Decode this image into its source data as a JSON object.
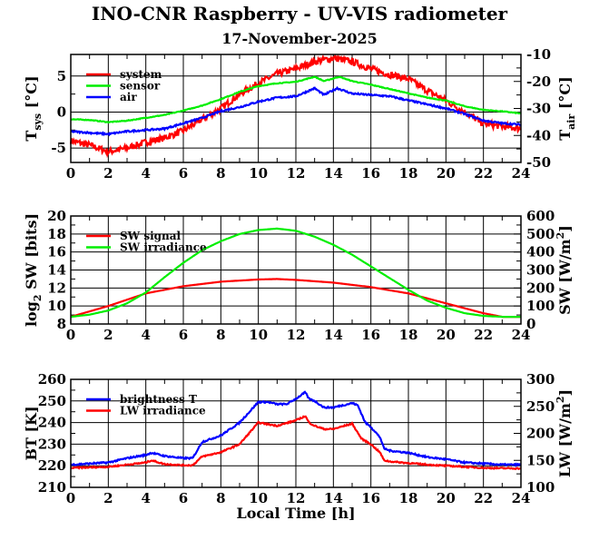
{
  "title": "INO-CNR Raspberry - UV-VIS radiometer",
  "date": "17-November-2025",
  "xlabel": "Local Time [h]",
  "chart_data": [
    {
      "type": "line",
      "name": "temperatures",
      "xlim": [
        0,
        24
      ],
      "xticks": [
        0,
        2,
        4,
        6,
        8,
        10,
        12,
        14,
        16,
        18,
        20,
        22,
        24
      ],
      "ylim": [
        -7,
        8
      ],
      "yticks": [
        -5,
        0,
        5
      ],
      "y2lim": [
        -50,
        -10
      ],
      "y2ticks": [
        -50,
        -40,
        -30,
        -20,
        -10
      ],
      "ylabel": {
        "main": "T",
        "sub": "sys",
        "rest": " [°C]"
      },
      "y2label": {
        "main": "T",
        "sub": "air",
        "rest": " [°C]"
      },
      "grid": true,
      "legend_position": "top-left",
      "series": [
        {
          "name": "system",
          "axis": "left",
          "color": "#ff0000",
          "noise": 0.45,
          "x": [
            0,
            1,
            2,
            3,
            4,
            5,
            6,
            7,
            8,
            9,
            10,
            11,
            12,
            13,
            14,
            15,
            16,
            17,
            18,
            19,
            20,
            21,
            22,
            23,
            24
          ],
          "y": [
            -4,
            -4.6,
            -5.5,
            -5,
            -4.2,
            -3.6,
            -2.6,
            -1,
            0.5,
            2.5,
            4,
            5.3,
            6,
            7,
            7.5,
            7,
            6,
            5.2,
            4.6,
            3,
            1.6,
            0,
            -1.6,
            -2,
            -2.3
          ]
        },
        {
          "name": "sensor",
          "axis": "left",
          "color": "#00ee00",
          "noise": 0.05,
          "x": [
            0,
            1,
            2,
            3,
            4,
            5,
            6,
            7,
            8,
            9,
            10,
            11,
            12,
            13,
            13.5,
            14.3,
            15,
            16,
            17,
            18,
            19,
            20,
            21,
            22,
            23,
            24
          ],
          "y": [
            -1,
            -1.1,
            -1.4,
            -1.2,
            -0.8,
            -0.4,
            0.2,
            0.9,
            1.8,
            2.8,
            3.6,
            4,
            4.2,
            4.9,
            4.3,
            4.9,
            4.3,
            3.8,
            3.2,
            2.6,
            2,
            1.6,
            0.8,
            0.3,
            0.1,
            -0.2
          ]
        },
        {
          "name": "air",
          "axis": "right",
          "color": "#0000ff",
          "noise": 0.3,
          "x": [
            0,
            1,
            2,
            3,
            4,
            5,
            6,
            7,
            8,
            9,
            10,
            11,
            12,
            13,
            13.5,
            14.2,
            15,
            16,
            17,
            18,
            19,
            20,
            21,
            22,
            23,
            24
          ],
          "y": [
            -38.5,
            -39,
            -39.5,
            -38.5,
            -38,
            -37.5,
            -35.5,
            -33.5,
            -31,
            -29.5,
            -27.5,
            -26,
            -25.5,
            -22.5,
            -25,
            -22.5,
            -24.5,
            -25,
            -25.5,
            -27,
            -28.5,
            -30,
            -32,
            -34.5,
            -35.5,
            -36
          ]
        }
      ]
    },
    {
      "type": "line",
      "name": "shortwave",
      "xlim": [
        0,
        24
      ],
      "xticks": [
        0,
        2,
        4,
        6,
        8,
        10,
        12,
        14,
        16,
        18,
        20,
        22,
        24
      ],
      "ylim": [
        8,
        20
      ],
      "yticks": [
        8,
        10,
        12,
        14,
        16,
        18,
        20
      ],
      "y2lim": [
        0,
        600
      ],
      "y2ticks": [
        0,
        100,
        200,
        300,
        400,
        500,
        600
      ],
      "ylabel": {
        "main": "log",
        "sub": "2",
        "rest": " SW [bits]"
      },
      "y2label": {
        "main": "SW [W/m",
        "sup": "2",
        "rest": "]"
      },
      "grid": true,
      "legend_position": "top-left",
      "series": [
        {
          "name": "SW signal",
          "axis": "left",
          "color": "#ff0000",
          "noise": 0,
          "x": [
            0,
            2,
            4,
            6,
            8,
            10,
            11,
            12,
            14,
            16,
            18,
            20,
            22,
            23,
            24
          ],
          "y": [
            8.8,
            10,
            11.4,
            12.2,
            12.7,
            12.95,
            13,
            12.9,
            12.6,
            12.1,
            11.4,
            10.3,
            9.2,
            8.8,
            8.8
          ]
        },
        {
          "name": "SW irradiance",
          "axis": "right",
          "color": "#00ee00",
          "noise": 0,
          "x": [
            0,
            1,
            2,
            3,
            4,
            5,
            6,
            7,
            8,
            9,
            10,
            11,
            12,
            13,
            14,
            15,
            16,
            17,
            18,
            19,
            20,
            21,
            22,
            23,
            24
          ],
          "y": [
            40,
            52,
            75,
            115,
            175,
            260,
            340,
            410,
            460,
            500,
            522,
            530,
            518,
            485,
            440,
            385,
            320,
            255,
            190,
            130,
            90,
            60,
            45,
            40,
            40
          ]
        }
      ]
    },
    {
      "type": "line",
      "name": "longwave",
      "xlim": [
        0,
        24
      ],
      "xticks": [
        0,
        2,
        4,
        6,
        8,
        10,
        12,
        14,
        16,
        18,
        20,
        22,
        24
      ],
      "ylim": [
        210,
        260
      ],
      "yticks": [
        210,
        220,
        230,
        240,
        250,
        260
      ],
      "y2lim": [
        100,
        300
      ],
      "y2ticks": [
        100,
        150,
        200,
        250,
        300
      ],
      "ylabel": {
        "main": "BT [K]"
      },
      "y2label": {
        "main": "LW [W/m",
        "sup": "2",
        "rest": "]"
      },
      "grid": true,
      "legend_position": "top-left",
      "series": [
        {
          "name": "brightness T",
          "axis": "left",
          "color": "#0000ff",
          "noise": 0.35,
          "x": [
            0,
            1,
            2,
            3,
            4,
            4.3,
            5,
            6,
            6.5,
            7,
            8,
            9,
            10,
            10.5,
            11,
            11.5,
            12,
            12.5,
            12.7,
            13,
            13.5,
            14,
            14.5,
            15,
            15.3,
            15.7,
            16,
            16.5,
            16.7,
            17,
            18,
            19,
            20,
            21,
            22,
            23,
            24
          ],
          "y": [
            220.5,
            221,
            221.5,
            223.5,
            225,
            226,
            224.5,
            223.5,
            223.5,
            231,
            234,
            240,
            249.5,
            249.5,
            248.5,
            248.5,
            251,
            254,
            251,
            250,
            247,
            247,
            248,
            249,
            248,
            240,
            238,
            233,
            228,
            227,
            226,
            224,
            223,
            221.5,
            221,
            220.5,
            220.5
          ]
        },
        {
          "name": "LW irradiance",
          "axis": "right",
          "color": "#ff0000",
          "noise": 1.2,
          "x": [
            0,
            2,
            3,
            4,
            4.3,
            5,
            6,
            6.5,
            7,
            8,
            9,
            10,
            11,
            12,
            12.5,
            12.7,
            13,
            13.5,
            14,
            15,
            15.5,
            16,
            16.5,
            16.7,
            17,
            18,
            19,
            20,
            21,
            22,
            24
          ],
          "y": [
            136,
            138,
            142,
            146,
            150,
            143,
            141,
            141,
            157,
            165,
            180,
            220,
            214,
            224,
            232,
            220,
            214,
            208,
            208,
            218,
            190,
            180,
            164,
            150,
            148,
            145,
            142,
            140,
            138,
            136,
            135
          ]
        }
      ]
    }
  ]
}
